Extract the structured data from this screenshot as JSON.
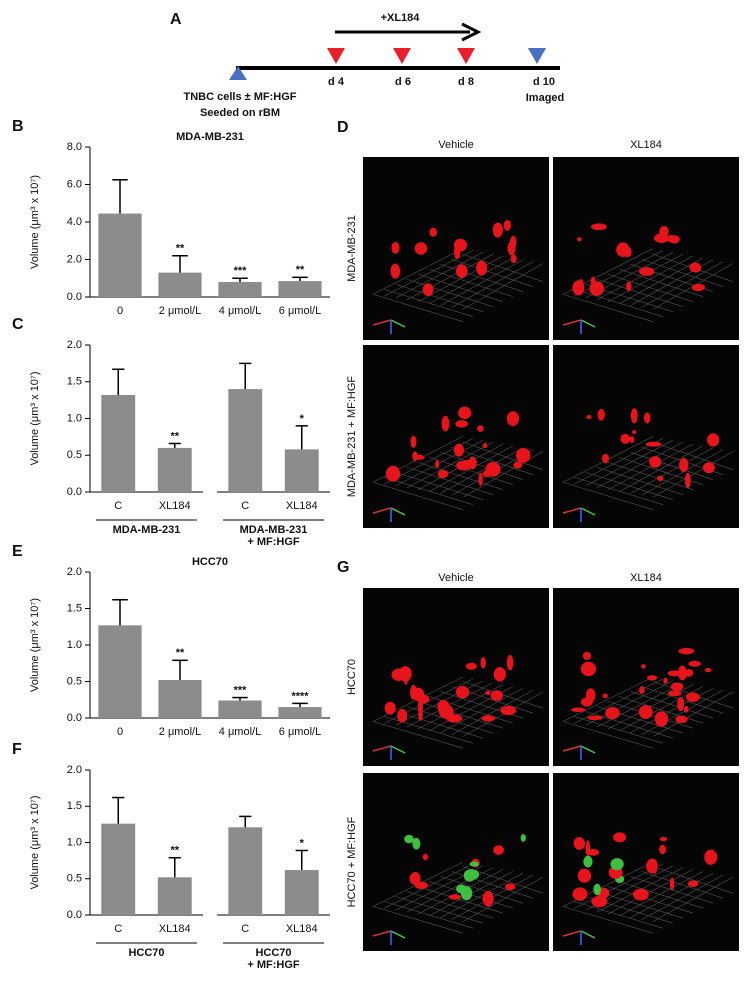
{
  "chart_data": [
    {
      "type": "bar",
      "letter": "B",
      "title": "MDA-MB-231",
      "ylabel": "Volume (μm³ x 10⁷)",
      "categories": [
        "0",
        "2 μmol/L",
        "4 μmol/L",
        "6 μmol/L"
      ],
      "values": [
        4.45,
        1.3,
        0.8,
        0.85
      ],
      "errors": [
        1.8,
        0.9,
        0.2,
        0.2
      ],
      "annotations": [
        null,
        "**",
        "***",
        "**"
      ],
      "color": "#8c8c8c",
      "ylim": [
        0,
        8
      ],
      "yticks": [
        {
          "value": 0,
          "label": "0.0"
        },
        {
          "value": 2,
          "label": "2.0"
        },
        {
          "value": 4,
          "label": "4.0"
        },
        {
          "value": 6,
          "label": "6.0"
        },
        {
          "value": 8,
          "label": "8.0"
        }
      ]
    },
    {
      "type": "bar",
      "letter": "C",
      "ylabel": "Volume (μm³ x 10⁷)",
      "categories": [
        "C",
        "XL184",
        "C",
        "XL184"
      ],
      "values": [
        1.32,
        0.6,
        1.4,
        0.58
      ],
      "errors": [
        0.35,
        0.06,
        0.35,
        0.32
      ],
      "annotations": [
        null,
        "**",
        null,
        "*"
      ],
      "color": "#8c8c8c",
      "groups": [
        [
          "MDA-MB-231"
        ],
        [
          "MDA-MB-231",
          "+ MF:HGF"
        ]
      ],
      "ylim": [
        0,
        2
      ],
      "yticks": [
        {
          "value": 0,
          "label": "0.0"
        },
        0.5,
        {
          "value": 1,
          "label": "1.0"
        },
        1.5,
        {
          "value": 2,
          "label": "2.0"
        }
      ]
    },
    {
      "type": "bar",
      "letter": "E",
      "title": "HCC70",
      "ylabel": "Volume (μm³ x 10⁷)",
      "categories": [
        "0",
        "2 μmol/L",
        "4 μmol/L",
        "6 μmol/L"
      ],
      "values": [
        1.27,
        0.52,
        0.24,
        0.15
      ],
      "errors": [
        0.35,
        0.27,
        0.04,
        0.05
      ],
      "annotations": [
        null,
        "**",
        "***",
        "****"
      ],
      "color": "#8c8c8c",
      "ylim": [
        0,
        2
      ],
      "yticks": [
        {
          "value": 0,
          "label": "0.0"
        },
        0.5,
        {
          "value": 1,
          "label": "1.0"
        },
        1.5,
        {
          "value": 2,
          "label": "2.0"
        }
      ]
    },
    {
      "type": "bar",
      "letter": "F",
      "ylabel": "Volume (μm³ x 10⁷)",
      "categories": [
        "C",
        "XL184",
        "C",
        "XL184"
      ],
      "values": [
        1.26,
        0.52,
        1.21,
        0.62
      ],
      "errors": [
        0.36,
        0.27,
        0.15,
        0.27
      ],
      "annotations": [
        null,
        "**",
        null,
        "*"
      ],
      "color": "#8c8c8c",
      "groups": [
        [
          "HCC70"
        ],
        [
          "HCC70",
          "+ MF:HGF"
        ]
      ],
      "ylim": [
        0,
        2
      ],
      "yticks": [
        {
          "value": 0,
          "label": "0.0"
        },
        0.5,
        {
          "value": 1,
          "label": "1.0"
        },
        1.5,
        {
          "value": 2,
          "label": "2.0"
        }
      ]
    }
  ],
  "timeline": {
    "letter": "A",
    "treatment": "+XL184",
    "days": [
      "d 4",
      "d 6",
      "d 8",
      "d 10"
    ],
    "end_label": "Imaged",
    "start_label": [
      "TNBC cells ± MF:HGF",
      "Seeded on rBM"
    ]
  },
  "image_panels": [
    {
      "letter": "D",
      "columns": [
        "Vehicle",
        "XL184"
      ],
      "rows": [
        "MDA-MB-231",
        "MDA-MB-231 + MF:HGF"
      ]
    },
    {
      "letter": "G",
      "columns": [
        "Vehicle",
        "XL184"
      ],
      "rows": [
        "HCC70",
        "HCC70 + MF:HGF"
      ]
    }
  ]
}
